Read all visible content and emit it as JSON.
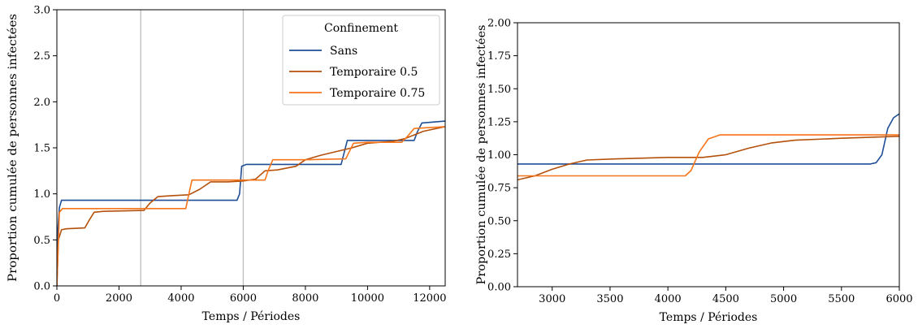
{
  "colors": {
    "sans": "#1f4e96",
    "temp05": "#b5500b",
    "temp075": "#f5751a",
    "vline": "#bdbdbd"
  },
  "chart_data": [
    {
      "type": "line",
      "xlabel": "Temps / Périodes",
      "ylabel": "Proportion cumulée de personnes infectées",
      "xlim": [
        0,
        12500
      ],
      "ylim": [
        0,
        3.0
      ],
      "xticks": [
        0,
        2000,
        4000,
        6000,
        8000,
        10000,
        12000
      ],
      "xtick_labels": [
        "0",
        "2000",
        "4000",
        "6000",
        "8000",
        "10000",
        "12000"
      ],
      "yticks": [
        0,
        0.5,
        1.0,
        1.5,
        2.0,
        2.5,
        3.0
      ],
      "ytick_labels": [
        "0.0",
        "0.5",
        "1.0",
        "1.5",
        "2.0",
        "2.5",
        "3.0"
      ],
      "vlines": [
        2700,
        6000
      ],
      "legend": {
        "title": "Confinement",
        "placement": "top-right"
      },
      "series": [
        {
          "name": "Sans",
          "color_key": "sans",
          "points": [
            [
              0,
              0
            ],
            [
              30,
              0.6
            ],
            [
              80,
              0.85
            ],
            [
              150,
              0.93
            ],
            [
              5800,
              0.93
            ],
            [
              5880,
              1.0
            ],
            [
              5950,
              1.3
            ],
            [
              6100,
              1.32
            ],
            [
              9150,
              1.32
            ],
            [
              9250,
              1.45
            ],
            [
              9350,
              1.58
            ],
            [
              11500,
              1.58
            ],
            [
              11600,
              1.67
            ],
            [
              11750,
              1.77
            ],
            [
              12500,
              1.79
            ]
          ]
        },
        {
          "name": "Temporaire 0.5",
          "color_key": "temp05",
          "points": [
            [
              0,
              0
            ],
            [
              50,
              0.5
            ],
            [
              150,
              0.61
            ],
            [
              300,
              0.62
            ],
            [
              900,
              0.63
            ],
            [
              1050,
              0.72
            ],
            [
              1200,
              0.8
            ],
            [
              1500,
              0.81
            ],
            [
              2800,
              0.82
            ],
            [
              3000,
              0.9
            ],
            [
              3250,
              0.97
            ],
            [
              3700,
              0.98
            ],
            [
              4250,
              0.99
            ],
            [
              4600,
              1.05
            ],
            [
              4950,
              1.13
            ],
            [
              5500,
              1.13
            ],
            [
              6000,
              1.14
            ],
            [
              6400,
              1.16
            ],
            [
              6700,
              1.25
            ],
            [
              7100,
              1.26
            ],
            [
              7700,
              1.3
            ],
            [
              8000,
              1.37
            ],
            [
              8500,
              1.42
            ],
            [
              9500,
              1.5
            ],
            [
              10000,
              1.55
            ],
            [
              10800,
              1.57
            ],
            [
              11200,
              1.6
            ],
            [
              11800,
              1.68
            ],
            [
              12500,
              1.73
            ]
          ]
        },
        {
          "name": "Temporaire 0.75",
          "color_key": "temp075",
          "points": [
            [
              0,
              0
            ],
            [
              80,
              0.8
            ],
            [
              180,
              0.84
            ],
            [
              4150,
              0.84
            ],
            [
              4250,
              1.0
            ],
            [
              4350,
              1.15
            ],
            [
              5800,
              1.15
            ],
            [
              6700,
              1.15
            ],
            [
              6800,
              1.25
            ],
            [
              6950,
              1.37
            ],
            [
              8000,
              1.37
            ],
            [
              9300,
              1.38
            ],
            [
              9400,
              1.45
            ],
            [
              9550,
              1.55
            ],
            [
              10000,
              1.56
            ],
            [
              11100,
              1.56
            ],
            [
              11300,
              1.63
            ],
            [
              11500,
              1.71
            ],
            [
              12000,
              1.72
            ],
            [
              12500,
              1.73
            ]
          ]
        }
      ]
    },
    {
      "type": "line",
      "xlabel": "Temps / Périodes",
      "ylabel": "Proportion cumulée de personnes infectées",
      "xlim": [
        2700,
        6000
      ],
      "ylim": [
        0,
        2.0
      ],
      "xticks": [
        3000,
        3500,
        4000,
        4500,
        5000,
        5500,
        6000
      ],
      "xtick_labels": [
        "3000",
        "3500",
        "4000",
        "4500",
        "5000",
        "5500",
        "6000"
      ],
      "yticks": [
        0,
        0.25,
        0.5,
        0.75,
        1.0,
        1.25,
        1.5,
        1.75,
        2.0
      ],
      "ytick_labels": [
        "0.00",
        "0.25",
        "0.50",
        "0.75",
        "1.00",
        "1.25",
        "1.50",
        "1.75",
        "2.00"
      ],
      "series": [
        {
          "name": "Sans",
          "color_key": "sans",
          "points": [
            [
              2700,
              0.93
            ],
            [
              5750,
              0.93
            ],
            [
              5800,
              0.94
            ],
            [
              5850,
              1.0
            ],
            [
              5900,
              1.2
            ],
            [
              5950,
              1.28
            ],
            [
              6000,
              1.31
            ]
          ]
        },
        {
          "name": "Temporaire 0.5",
          "color_key": "temp05",
          "points": [
            [
              2700,
              0.81
            ],
            [
              2850,
              0.84
            ],
            [
              3000,
              0.89
            ],
            [
              3150,
              0.93
            ],
            [
              3300,
              0.96
            ],
            [
              3600,
              0.97
            ],
            [
              4000,
              0.98
            ],
            [
              4300,
              0.98
            ],
            [
              4500,
              1.0
            ],
            [
              4700,
              1.05
            ],
            [
              4900,
              1.09
            ],
            [
              5100,
              1.11
            ],
            [
              5500,
              1.125
            ],
            [
              6000,
              1.14
            ]
          ]
        },
        {
          "name": "Temporaire 0.75",
          "color_key": "temp075",
          "points": [
            [
              2700,
              0.84
            ],
            [
              4150,
              0.84
            ],
            [
              4200,
              0.88
            ],
            [
              4270,
              1.02
            ],
            [
              4350,
              1.12
            ],
            [
              4450,
              1.15
            ],
            [
              6000,
              1.15
            ]
          ]
        }
      ]
    }
  ]
}
